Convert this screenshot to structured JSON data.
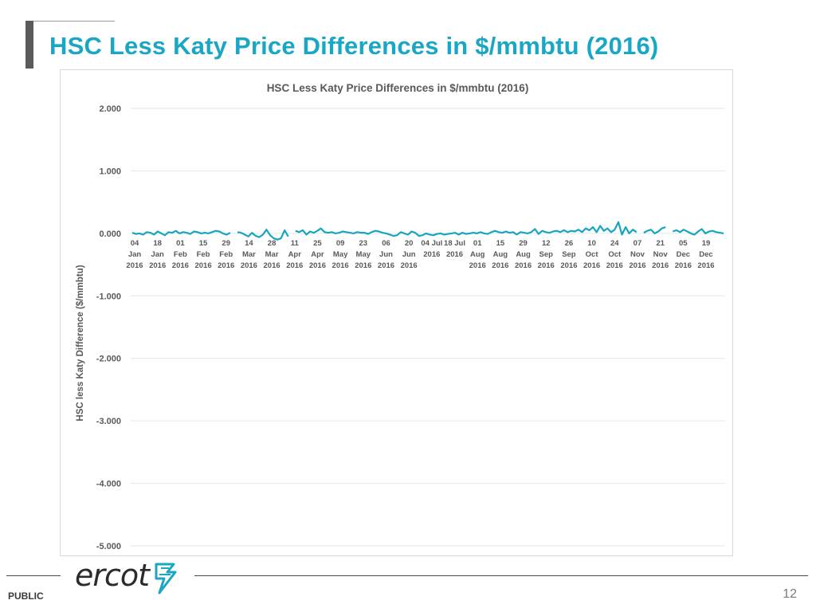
{
  "slide": {
    "title": "HSC Less Katy Price Differences in $/mmbtu (2016)",
    "footer_label": "PUBLIC",
    "page_number": "12",
    "logo_text": "ercot",
    "logo_mark": "ercot-star-icon"
  },
  "colors": {
    "title": "#1aa7c6",
    "series": "#17a5c1",
    "grid": "#e6e6e6",
    "axis_text": "#595959"
  },
  "chart_data": {
    "type": "line",
    "title": "HSC Less Katy Price Differences in $/mmbtu (2016)",
    "xlabel": "",
    "ylabel": "HSC less Katy Difference ($/mmbtu)",
    "ylim": [
      -5,
      2
    ],
    "y_ticks": [
      2,
      1,
      0,
      -1,
      -2,
      -3,
      -4,
      -5
    ],
    "y_tick_labels": [
      "2.000",
      "1.000",
      "0.000",
      "-1.000",
      "-2.000",
      "-3.000",
      "-4.000",
      "-5.000"
    ],
    "x_tick_labels": [
      [
        "04",
        "Jan",
        "2016"
      ],
      [
        "18",
        "Jan",
        "2016"
      ],
      [
        "01",
        "Feb",
        "2016"
      ],
      [
        "15",
        "Feb",
        "2016"
      ],
      [
        "29",
        "Feb",
        "2016"
      ],
      [
        "14",
        "Mar",
        "2016"
      ],
      [
        "28",
        "Mar",
        "2016"
      ],
      [
        "11",
        "Apr",
        "2016"
      ],
      [
        "25",
        "Apr",
        "2016"
      ],
      [
        "09",
        "May",
        "2016"
      ],
      [
        "23",
        "May",
        "2016"
      ],
      [
        "06",
        "Jun",
        "2016"
      ],
      [
        "20",
        "Jun",
        "2016"
      ],
      [
        "04 Jul",
        "2016",
        ""
      ],
      [
        "18 Jul",
        "2016",
        ""
      ],
      [
        "01",
        "Aug",
        "2016"
      ],
      [
        "15",
        "Aug",
        "2016"
      ],
      [
        "29",
        "Aug",
        "2016"
      ],
      [
        "12",
        "Sep",
        "2016"
      ],
      [
        "26",
        "Sep",
        "2016"
      ],
      [
        "10",
        "Oct",
        "2016"
      ],
      [
        "24",
        "Oct",
        "2016"
      ],
      [
        "07",
        "Nov",
        "2016"
      ],
      [
        "21",
        "Nov",
        "2016"
      ],
      [
        "05",
        "Dec",
        "2016"
      ],
      [
        "19",
        "Dec",
        "2016"
      ]
    ],
    "series": [
      {
        "name": "HSC less Katy",
        "values": [
          0.01,
          -0.01,
          0.0,
          -0.02,
          0.02,
          0.01,
          -0.02,
          0.03,
          0.0,
          -0.03,
          0.02,
          0.01,
          0.04,
          0.0,
          0.02,
          0.01,
          -0.01,
          0.03,
          0.02,
          0.0,
          0.01,
          0.0,
          0.02,
          0.04,
          0.03,
          0.0,
          -0.02,
          0.01,
          null,
          0.02,
          0.01,
          -0.02,
          -0.05,
          0.01,
          -0.04,
          -0.06,
          -0.02,
          0.06,
          -0.03,
          -0.08,
          -0.1,
          -0.08,
          0.05,
          -0.05,
          null,
          0.04,
          0.02,
          0.05,
          -0.02,
          0.03,
          0.01,
          0.04,
          0.08,
          0.02,
          0.01,
          0.02,
          0.0,
          0.01,
          0.03,
          0.02,
          0.01,
          0.0,
          0.02,
          0.01,
          0.01,
          -0.01,
          0.02,
          0.04,
          0.03,
          0.01,
          0.0,
          -0.02,
          -0.04,
          -0.03,
          0.02,
          0.0,
          -0.02,
          0.03,
          0.01,
          -0.04,
          -0.03,
          0.0,
          -0.02,
          -0.03,
          -0.01,
          0.0,
          -0.02,
          -0.01,
          0.0,
          0.01,
          -0.02,
          0.01,
          -0.01,
          0.0,
          0.01,
          0.0,
          0.02,
          0.0,
          -0.01,
          0.02,
          0.04,
          0.02,
          0.01,
          0.03,
          0.01,
          0.02,
          -0.02,
          0.02,
          0.01,
          0.0,
          0.02,
          0.07,
          -0.01,
          0.04,
          0.02,
          0.01,
          0.03,
          0.04,
          0.02,
          0.05,
          0.02,
          0.04,
          0.03,
          0.06,
          0.02,
          0.08,
          0.05,
          0.1,
          0.02,
          0.12,
          0.04,
          0.08,
          0.02,
          0.06,
          0.18,
          -0.02,
          0.1,
          0.0,
          0.06,
          0.02,
          null,
          0.01,
          0.04,
          0.06,
          0.0,
          0.03,
          0.08,
          0.1,
          null,
          0.03,
          0.05,
          0.02,
          0.06,
          0.03,
          0.0,
          -0.02,
          0.03,
          0.07,
          0.0,
          0.03,
          0.04,
          0.02,
          0.01,
          0.0
        ]
      }
    ]
  }
}
